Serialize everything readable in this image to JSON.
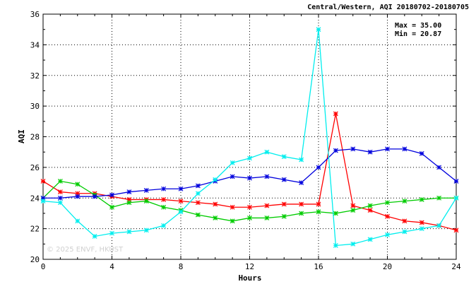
{
  "chart_data": {
    "type": "line",
    "title": "Central/Western, AQI 20180702-20180705",
    "xlabel": "Hours",
    "ylabel": "AQI",
    "xlim": [
      0,
      24
    ],
    "ylim": [
      20,
      36
    ],
    "xticks": [
      0,
      4,
      8,
      12,
      16,
      20,
      24
    ],
    "yticks": [
      20,
      22,
      24,
      26,
      28,
      30,
      32,
      34,
      36
    ],
    "grid": true,
    "stats": {
      "max": "Max = 35.00",
      "min": "Min = 20.87"
    },
    "watermark": "© 2025 ENVF, HKUST",
    "x": [
      0,
      1,
      2,
      3,
      4,
      5,
      6,
      7,
      8,
      9,
      10,
      11,
      12,
      13,
      14,
      15,
      16,
      17,
      18,
      19,
      20,
      21,
      22,
      23,
      24
    ],
    "series": [
      {
        "color": "#ff0000",
        "values": [
          25.1,
          24.4,
          24.3,
          24.3,
          24.1,
          23.9,
          23.9,
          23.9,
          23.8,
          23.7,
          23.6,
          23.4,
          23.4,
          23.5,
          23.6,
          23.6,
          23.6,
          29.5,
          23.5,
          23.2,
          22.8,
          22.5,
          22.4,
          22.2,
          21.9
        ]
      },
      {
        "color": "#00cc00",
        "values": [
          24.0,
          25.1,
          24.9,
          24.2,
          23.4,
          23.7,
          23.8,
          23.4,
          23.2,
          22.9,
          22.7,
          22.5,
          22.7,
          22.7,
          22.8,
          23.0,
          23.1,
          23.0,
          23.2,
          23.5,
          23.7,
          23.8,
          23.9,
          24.0,
          24.0
        ]
      },
      {
        "color": "#0000dd",
        "values": [
          24.0,
          24.0,
          24.1,
          24.1,
          24.2,
          24.4,
          24.5,
          24.6,
          24.6,
          24.8,
          25.1,
          25.4,
          25.3,
          25.4,
          25.2,
          25.0,
          26.0,
          27.1,
          27.2,
          27.0,
          27.2,
          27.2,
          26.9,
          26.0,
          25.1
        ]
      },
      {
        "color": "#00eeee",
        "values": [
          23.8,
          23.7,
          22.5,
          21.5,
          21.7,
          21.8,
          21.9,
          22.2,
          23.1,
          24.3,
          25.2,
          26.3,
          26.6,
          27.0,
          26.7,
          26.5,
          35.0,
          20.9,
          21.0,
          21.3,
          21.6,
          21.8,
          22.0,
          22.2,
          24.0
        ]
      }
    ]
  }
}
